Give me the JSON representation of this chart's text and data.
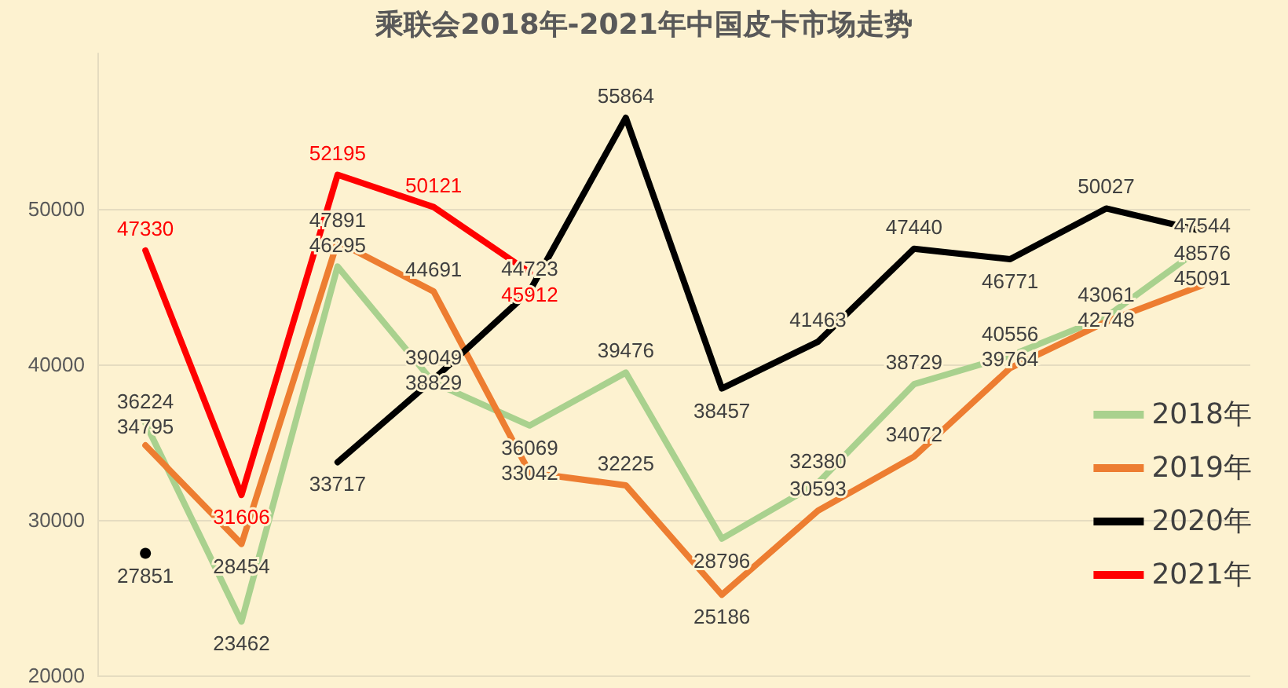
{
  "chart_data": {
    "type": "line",
    "title": "乘联会2018年-2021年中国皮卡市场走势",
    "categories": [
      null,
      null,
      null,
      null,
      null,
      null,
      null,
      null,
      null,
      null,
      null,
      null
    ],
    "series": [
      {
        "name": "2018年",
        "color": "#a9d18e",
        "values": [
          36224,
          23462,
          46295,
          38829,
          36069,
          39476,
          28796,
          32380,
          38729,
          40556,
          43061,
          47544
        ]
      },
      {
        "name": "2019年",
        "color": "#ed7d31",
        "values": [
          34795,
          28454,
          47891,
          44691,
          33042,
          32225,
          25186,
          30593,
          34072,
          39764,
          42748,
          45091
        ]
      },
      {
        "name": "2020年",
        "color": "#000000",
        "values": [
          27851,
          null,
          33717,
          39049,
          44723,
          55864,
          38457,
          41463,
          47440,
          46771,
          50027,
          48576
        ]
      },
      {
        "name": "2021年",
        "color": "#ff0000",
        "values": [
          47330,
          31606,
          52195,
          50121,
          45912,
          null,
          null,
          null,
          null,
          null,
          null,
          null
        ]
      }
    ],
    "ylim": [
      20000,
      60000
    ],
    "yticks": [
      20000,
      30000,
      40000,
      50000
    ],
    "grid": "y",
    "legend": "right",
    "marker": "none",
    "line_style": "solid",
    "data_labels": true
  }
}
